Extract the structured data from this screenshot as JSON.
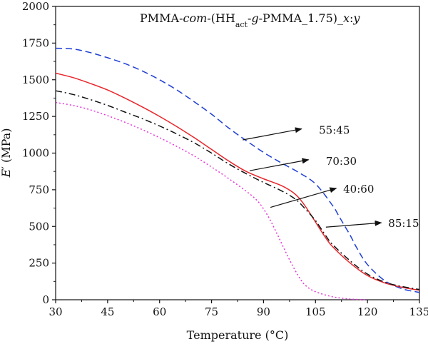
{
  "chart_data": {
    "type": "line",
    "title_parts": [
      {
        "text": "PMMA-",
        "style": "normal",
        "shift": "none"
      },
      {
        "text": "com",
        "style": "italic",
        "shift": "none"
      },
      {
        "text": "-(HH",
        "style": "normal",
        "shift": "none"
      },
      {
        "text": "act",
        "style": "normal",
        "shift": "sub"
      },
      {
        "text": "-",
        "style": "normal",
        "shift": "none"
      },
      {
        "text": "g",
        "style": "italic",
        "shift": "none"
      },
      {
        "text": "-PMMA_1.75)_",
        "style": "normal",
        "shift": "none"
      },
      {
        "text": "x",
        "style": "italic",
        "shift": "none"
      },
      {
        "text": ":",
        "style": "normal",
        "shift": "none"
      },
      {
        "text": "y",
        "style": "italic",
        "shift": "none"
      }
    ],
    "xlabel": "Temperature (°C)",
    "ylabel_parts": [
      {
        "text": "E",
        "style": "italic"
      },
      {
        "text": "′ (MPa)",
        "style": "normal"
      }
    ],
    "xlim": [
      30,
      135
    ],
    "ylim": [
      0,
      2000
    ],
    "xticks": [
      30,
      45,
      60,
      75,
      90,
      105,
      120,
      135
    ],
    "yticks": [
      0,
      250,
      500,
      750,
      1000,
      1250,
      1500,
      1750,
      2000
    ],
    "grid": false,
    "series": [
      {
        "name": "55:45",
        "color": "#1f3fd6",
        "dash": "dashed",
        "x": [
          30,
          35,
          40,
          45,
          50,
          55,
          60,
          65,
          70,
          75,
          80,
          85,
          90,
          95,
          100,
          105,
          110,
          112,
          115,
          117,
          120,
          125,
          130,
          135
        ],
        "y": [
          1715,
          1710,
          1685,
          1650,
          1610,
          1560,
          1500,
          1430,
          1350,
          1265,
          1170,
          1085,
          1005,
          935,
          870,
          790,
          640,
          560,
          440,
          350,
          240,
          130,
          75,
          50
        ]
      },
      {
        "name": "70:30",
        "color": "#e8262b",
        "dash": "solid",
        "x": [
          30,
          35,
          40,
          45,
          50,
          55,
          60,
          65,
          70,
          75,
          80,
          85,
          90,
          95,
          98,
          100,
          102,
          105,
          108,
          110,
          115,
          120,
          125,
          130,
          135
        ],
        "y": [
          1545,
          1515,
          1475,
          1430,
          1375,
          1315,
          1250,
          1180,
          1105,
          1025,
          945,
          875,
          825,
          780,
          740,
          700,
          640,
          530,
          420,
          360,
          250,
          165,
          115,
          85,
          65
        ]
      },
      {
        "name": "85:15",
        "color": "#111111",
        "dash": "dashdot",
        "x": [
          30,
          35,
          40,
          45,
          50,
          55,
          60,
          65,
          70,
          75,
          80,
          85,
          90,
          95,
          98,
          100,
          102,
          105,
          108,
          110,
          115,
          120,
          125,
          130,
          135
        ],
        "y": [
          1425,
          1400,
          1365,
          1325,
          1280,
          1235,
          1185,
          1130,
          1070,
          1000,
          925,
          860,
          800,
          745,
          705,
          670,
          620,
          540,
          435,
          375,
          265,
          175,
          120,
          90,
          70
        ]
      },
      {
        "name": "40:60",
        "color": "#e436d8",
        "dash": "dotted",
        "x": [
          30,
          35,
          40,
          45,
          50,
          55,
          60,
          65,
          70,
          75,
          80,
          85,
          88,
          90,
          92,
          94,
          96,
          98,
          100,
          102,
          105,
          110,
          115,
          120
        ],
        "y": [
          1345,
          1325,
          1295,
          1255,
          1210,
          1160,
          1105,
          1045,
          980,
          905,
          825,
          740,
          680,
          620,
          540,
          445,
          345,
          250,
          165,
          100,
          55,
          20,
          5,
          0
        ]
      }
    ],
    "annotations": [
      {
        "label": "55:45",
        "tail": [
          84,
          1090
        ],
        "head": [
          101,
          1165
        ],
        "text_pos": [
          106,
          1155
        ]
      },
      {
        "label": "70:30",
        "tail": [
          86,
          880
        ],
        "head": [
          103,
          955
        ],
        "text_pos": [
          108,
          945
        ]
      },
      {
        "label": "40:60",
        "tail": [
          92,
          630
        ],
        "head": [
          111,
          760
        ],
        "text_pos": [
          113,
          755
        ]
      },
      {
        "label": "85:15",
        "tail": [
          108,
          495
        ],
        "head": [
          124,
          525
        ],
        "text_pos": [
          126,
          520
        ]
      }
    ]
  }
}
